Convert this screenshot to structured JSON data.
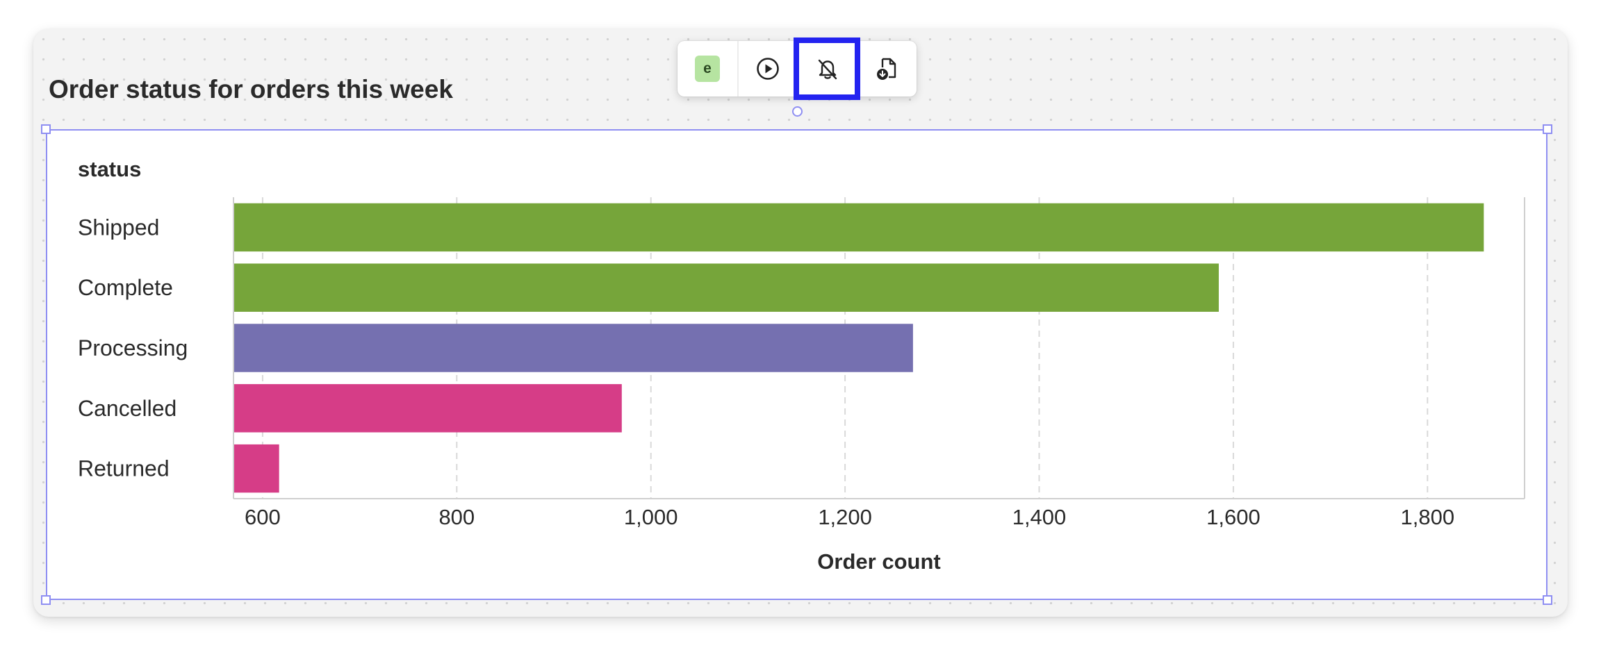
{
  "block": {
    "title": "Order status for orders this week"
  },
  "toolbar": {
    "badge_letter": "e",
    "buttons": [
      "editor-badge",
      "run",
      "notifications-off",
      "export"
    ]
  },
  "colors": {
    "shipped": "#76a53a",
    "complete": "#76a53a",
    "processing": "#7570b0",
    "cancelled": "#d63d87",
    "returned": "#d63d87",
    "highlight": "#2323f0",
    "selection": "#8e8ef2"
  },
  "chart_data": {
    "type": "bar",
    "orientation": "horizontal",
    "ylabel": "status",
    "xlabel": "Order count",
    "categories": [
      "Shipped",
      "Complete",
      "Processing",
      "Cancelled",
      "Returned"
    ],
    "values": [
      1858,
      1585,
      1270,
      970,
      617
    ],
    "colors": [
      "#76a53a",
      "#76a53a",
      "#7570b0",
      "#d63d87",
      "#d63d87"
    ],
    "xlim": [
      570,
      1900
    ],
    "xticks": [
      600,
      800,
      1000,
      1200,
      1400,
      1600,
      1800
    ],
    "xtick_labels": [
      "600",
      "800",
      "1,000",
      "1,200",
      "1,400",
      "1,600",
      "1,800"
    ],
    "grid": true
  }
}
